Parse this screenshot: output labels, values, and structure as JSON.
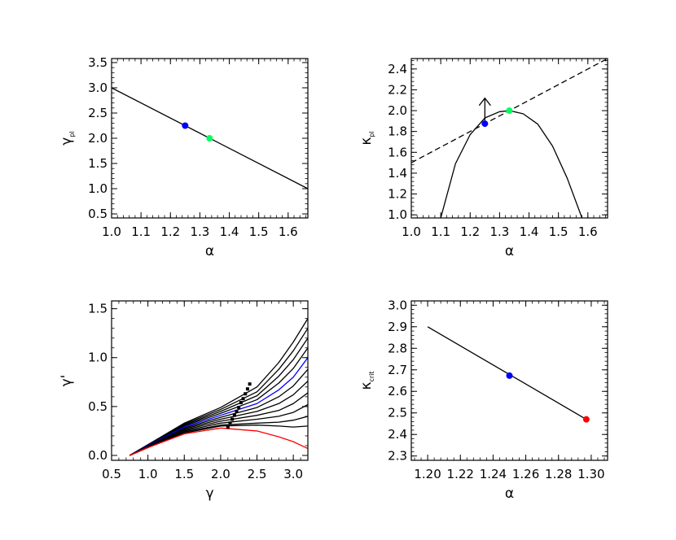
{
  "chart_data": [
    {
      "type": "line",
      "xlabel": "α",
      "ylabel": "γ",
      "ylabel_sub": "pl",
      "xlim": [
        1.0,
        1.667
      ],
      "ylim": [
        0.42,
        3.58
      ],
      "xticks": [
        1.0,
        1.1,
        1.2,
        1.3,
        1.4,
        1.5,
        1.6
      ],
      "xtick_labels": [
        "1.0",
        "1.1",
        "1.2",
        "1.3",
        "1.4",
        "1.5",
        "1.6"
      ],
      "yticks": [
        0.5,
        1.0,
        1.5,
        2.0,
        2.5,
        3.0,
        3.5
      ],
      "ytick_labels": [
        "0.5",
        "1.0",
        "1.5",
        "2.0",
        "2.5",
        "3.0",
        "3.5"
      ],
      "grid": false,
      "series": [
        {
          "style": "solid",
          "color": "#000000",
          "x": [
            1.0,
            1.667
          ],
          "y": [
            3.0,
            1.0
          ]
        }
      ],
      "points": [
        {
          "x": 1.25,
          "y": 2.25,
          "color": "#0000ff"
        },
        {
          "x": 1.333,
          "y": 2.0,
          "color": "#00ff60"
        }
      ]
    },
    {
      "type": "line",
      "xlabel": "α",
      "ylabel": "κ",
      "ylabel_sub": "pl",
      "xlim": [
        1.0,
        1.667
      ],
      "ylim": [
        0.97,
        2.5
      ],
      "xticks": [
        1.0,
        1.1,
        1.2,
        1.3,
        1.4,
        1.5,
        1.6
      ],
      "xtick_labels": [
        "1.0",
        "1.1",
        "1.2",
        "1.3",
        "1.4",
        "1.5",
        "1.6"
      ],
      "yticks": [
        1.0,
        1.2,
        1.4,
        1.6,
        1.8,
        2.0,
        2.2,
        2.4
      ],
      "ytick_labels": [
        "1.0",
        "1.2",
        "1.4",
        "1.6",
        "1.8",
        "2.0",
        "2.2",
        "2.4"
      ],
      "grid": false,
      "series": [
        {
          "style": "dashed",
          "color": "#000000",
          "x": [
            1.0,
            1.667
          ],
          "y": [
            1.5,
            2.5
          ]
        },
        {
          "style": "solid",
          "color": "#000000",
          "x": [
            1.1,
            1.15,
            1.2,
            1.25,
            1.3,
            1.333,
            1.38,
            1.43,
            1.48,
            1.53,
            1.58
          ],
          "y": [
            0.97,
            1.49,
            1.77,
            1.93,
            1.99,
            2.0,
            1.97,
            1.87,
            1.66,
            1.35,
            0.97
          ]
        }
      ],
      "points": [
        {
          "x": 1.25,
          "y": 1.875,
          "color": "#0000ff"
        },
        {
          "x": 1.333,
          "y": 2.0,
          "color": "#00ff60"
        }
      ],
      "arrows": [
        {
          "x": 1.25,
          "y_from": 1.875,
          "y_to": 2.12
        }
      ]
    },
    {
      "type": "line",
      "xlabel": "γ",
      "ylabel": "γ'",
      "xlim": [
        0.5,
        3.2
      ],
      "ylim": [
        -0.05,
        1.58
      ],
      "xticks": [
        0.5,
        1.0,
        1.5,
        2.0,
        2.5,
        3.0
      ],
      "xtick_labels": [
        "0.5",
        "1.0",
        "1.5",
        "2.0",
        "2.5",
        "3.0"
      ],
      "yticks": [
        0.0,
        0.5,
        1.0,
        1.5
      ],
      "ytick_labels": [
        "0.0",
        "0.5",
        "1.0",
        "1.5"
      ],
      "grid": false,
      "series": [
        {
          "color": "#000000",
          "x": [
            0.75,
            1.0,
            1.5,
            2.0,
            2.5,
            2.8,
            3.0,
            3.2
          ],
          "y": [
            0.0,
            0.11,
            0.33,
            0.49,
            0.7,
            0.95,
            1.16,
            1.4
          ]
        },
        {
          "color": "#000000",
          "x": [
            0.75,
            1.0,
            1.5,
            2.0,
            2.5,
            2.8,
            3.0,
            3.2
          ],
          "y": [
            0.0,
            0.11,
            0.32,
            0.47,
            0.65,
            0.88,
            1.07,
            1.3
          ]
        },
        {
          "color": "#000000",
          "x": [
            0.75,
            1.0,
            1.5,
            2.0,
            2.5,
            2.8,
            3.0,
            3.2
          ],
          "y": [
            0.0,
            0.105,
            0.31,
            0.45,
            0.61,
            0.81,
            0.98,
            1.2
          ]
        },
        {
          "color": "#000000",
          "x": [
            0.75,
            1.0,
            1.5,
            2.0,
            2.5,
            2.8,
            3.0,
            3.2
          ],
          "y": [
            0.0,
            0.1,
            0.3,
            0.43,
            0.57,
            0.74,
            0.89,
            1.1
          ]
        },
        {
          "color": "#0000ff",
          "x": [
            0.75,
            1.0,
            1.5,
            2.0,
            2.5,
            2.8,
            3.0,
            3.2
          ],
          "y": [
            0.0,
            0.1,
            0.29,
            0.41,
            0.53,
            0.67,
            0.8,
            1.0
          ]
        },
        {
          "color": "#000000",
          "x": [
            0.75,
            1.0,
            1.5,
            2.0,
            2.5,
            2.8,
            3.0,
            3.2
          ],
          "y": [
            0.0,
            0.095,
            0.28,
            0.39,
            0.49,
            0.6,
            0.71,
            0.88
          ]
        },
        {
          "color": "#000000",
          "x": [
            0.75,
            1.0,
            1.5,
            2.0,
            2.5,
            2.8,
            3.0,
            3.2
          ],
          "y": [
            0.0,
            0.09,
            0.27,
            0.37,
            0.45,
            0.53,
            0.62,
            0.76
          ]
        },
        {
          "color": "#000000",
          "x": [
            0.75,
            1.0,
            1.5,
            2.0,
            2.5,
            2.8,
            3.0,
            3.2
          ],
          "y": [
            0.0,
            0.09,
            0.26,
            0.35,
            0.41,
            0.46,
            0.53,
            0.64
          ]
        },
        {
          "color": "#000000",
          "x": [
            0.75,
            1.0,
            1.5,
            2.0,
            2.5,
            2.8,
            3.0,
            3.2
          ],
          "y": [
            0.0,
            0.085,
            0.25,
            0.33,
            0.37,
            0.4,
            0.44,
            0.52
          ]
        },
        {
          "color": "#000000",
          "x": [
            0.75,
            1.0,
            1.5,
            2.0,
            2.5,
            2.8,
            3.0,
            3.2
          ],
          "y": [
            0.0,
            0.08,
            0.24,
            0.31,
            0.33,
            0.34,
            0.36,
            0.4
          ]
        },
        {
          "color": "#000000",
          "x": [
            0.75,
            1.0,
            1.5,
            2.0,
            2.5,
            2.8,
            3.0,
            3.2
          ],
          "y": [
            0.0,
            0.08,
            0.23,
            0.3,
            0.31,
            0.3,
            0.29,
            0.3
          ]
        },
        {
          "color": "#ff0000",
          "x": [
            0.75,
            1.0,
            1.5,
            2.0,
            2.5,
            2.8,
            3.0,
            3.2
          ],
          "y": [
            0.0,
            0.08,
            0.22,
            0.28,
            0.25,
            0.19,
            0.14,
            0.07
          ]
        }
      ],
      "points": [
        {
          "x": 2.1,
          "y": 0.29,
          "color": "#000000"
        },
        {
          "x": 2.13,
          "y": 0.33,
          "color": "#000000"
        },
        {
          "x": 2.16,
          "y": 0.37,
          "color": "#000000"
        },
        {
          "x": 2.19,
          "y": 0.41,
          "color": "#000000"
        },
        {
          "x": 2.22,
          "y": 0.45,
          "color": "#000000"
        },
        {
          "x": 2.25,
          "y": 0.49,
          "color": "#000000"
        },
        {
          "x": 2.28,
          "y": 0.54,
          "color": "#000000"
        },
        {
          "x": 2.31,
          "y": 0.58,
          "color": "#000000"
        },
        {
          "x": 2.34,
          "y": 0.63,
          "color": "#000000"
        },
        {
          "x": 2.37,
          "y": 0.68,
          "color": "#000000"
        },
        {
          "x": 2.4,
          "y": 0.73,
          "color": "#000000"
        }
      ]
    },
    {
      "type": "line",
      "xlabel": "α",
      "ylabel": "κ",
      "ylabel_sub": "crit",
      "xlim": [
        1.19,
        1.31
      ],
      "ylim": [
        2.28,
        3.02
      ],
      "xticks": [
        1.2,
        1.22,
        1.24,
        1.26,
        1.28,
        1.3
      ],
      "xtick_labels": [
        "1.20",
        "1.22",
        "1.24",
        "1.26",
        "1.28",
        "1.30"
      ],
      "yticks": [
        2.3,
        2.4,
        2.5,
        2.6,
        2.7,
        2.8,
        2.9,
        3.0
      ],
      "ytick_labels": [
        "2.3",
        "2.4",
        "2.5",
        "2.6",
        "2.7",
        "2.8",
        "2.9",
        "3.0"
      ],
      "grid": false,
      "series": [
        {
          "style": "solid",
          "color": "#000000",
          "x": [
            1.2,
            1.297
          ],
          "y": [
            2.9,
            2.47
          ]
        }
      ],
      "points": [
        {
          "x": 1.25,
          "y": 2.673,
          "color": "#0000ff"
        },
        {
          "x": 1.297,
          "y": 2.47,
          "color": "#ff0000"
        }
      ]
    }
  ]
}
